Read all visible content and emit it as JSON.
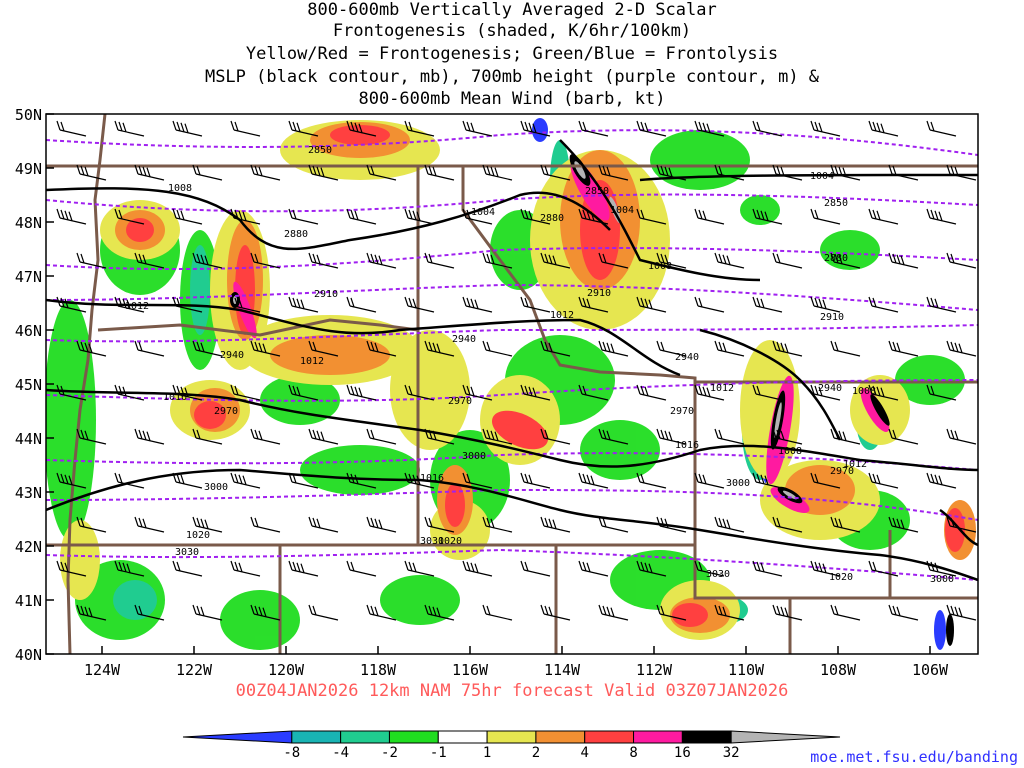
{
  "title": {
    "line1": "800-600mb Vertically Averaged 2-D Scalar",
    "line2": "Frontogenesis (shaded, K/6hr/100km)",
    "line3": "Yellow/Red = Frontogenesis;  Green/Blue = Frontolysis",
    "line4": "MSLP (black contour, mb), 700mb height (purple contour, m) &",
    "line5": "800-600mb Mean Wind (barb, kt)"
  },
  "axes": {
    "lat_labels": [
      "50N",
      "49N",
      "48N",
      "47N",
      "46N",
      "45N",
      "44N",
      "43N",
      "42N",
      "41N",
      "40N"
    ],
    "lon_labels": [
      "124W",
      "122W",
      "120W",
      "118W",
      "116W",
      "114W",
      "112W",
      "110W",
      "108W",
      "106W"
    ]
  },
  "contours": {
    "mslp_labels": [
      "1008",
      "1012",
      "1016",
      "1004",
      "1008",
      "1012",
      "1016",
      "1020",
      "1004",
      "1008",
      "1012",
      "1016",
      "1020",
      "1012"
    ],
    "height_labels": [
      "2850",
      "2880",
      "2910",
      "2940",
      "2970",
      "3000",
      "3030",
      "2850",
      "2880",
      "2910",
      "2940",
      "2970",
      "3000",
      "3030",
      "2850",
      "2880",
      "2910",
      "2940",
      "2970",
      "3000"
    ]
  },
  "colorbar": {
    "labels": [
      "-8",
      "-4",
      "-2",
      "-1",
      "1",
      "2",
      "4",
      "8",
      "16",
      "32"
    ],
    "colors": [
      "#2a3cff",
      "#19b4b4",
      "#20cc90",
      "#20dd20",
      "#ffffff",
      "#e6e650",
      "#f29032",
      "#ff4040",
      "#ff1aa0",
      "#000000",
      "#b4b4b4"
    ]
  },
  "footer": {
    "run": "00Z04JAN2026 12km NAM 75hr forecast Valid 03Z07JAN2026",
    "credit": "moe.met.fsu.edu/banding"
  }
}
